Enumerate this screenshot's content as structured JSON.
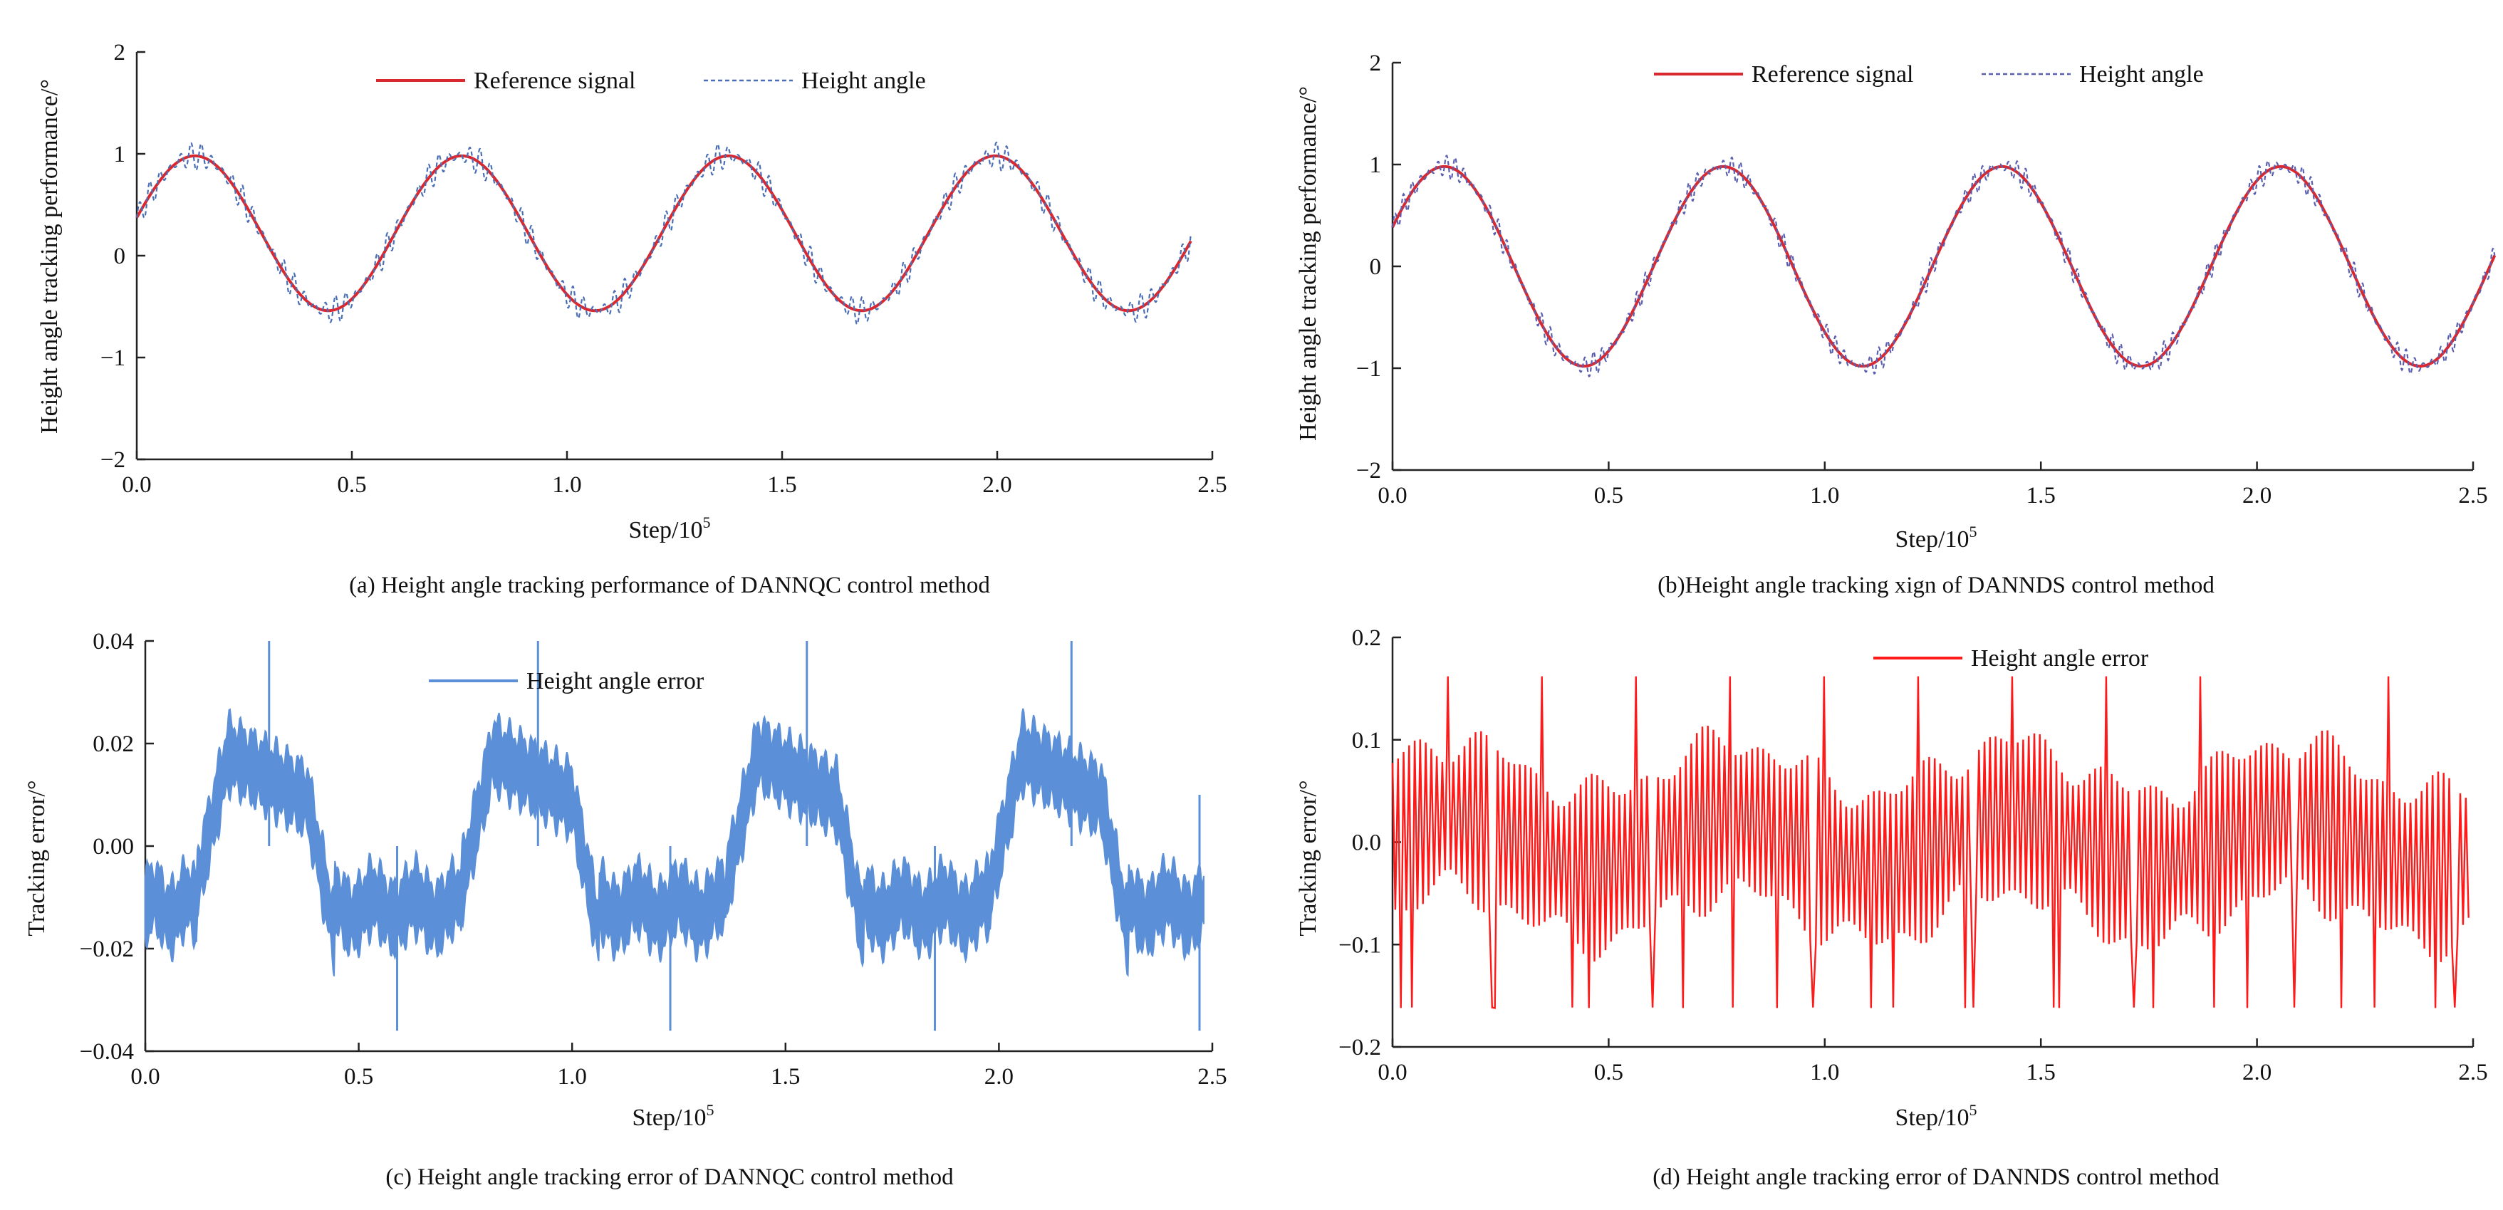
{
  "chart_data": [
    {
      "id": "a",
      "type": "line",
      "caption": "(a) Height angle tracking performance of DANNQC control method",
      "xlabel": "Step/10",
      "xlabel_sup": "5",
      "ylabel": "Height angle tracking performance/°",
      "xlim": [
        0,
        2.5
      ],
      "ylim": [
        -2,
        2
      ],
      "xticks": [
        "0.0",
        "0.5",
        "1.0",
        "1.5",
        "2.0",
        "2.5"
      ],
      "yticks": [
        "2",
        "1",
        "0",
        "−1",
        "−2"
      ],
      "x_end": 2.45,
      "series": [
        {
          "name": "Reference signal",
          "color": "#d9282f",
          "style": "solid",
          "signal": {
            "kind": "sine",
            "offset": 0.22,
            "amplitude": 0.76,
            "period": 0.62,
            "phase_x": 0.135
          }
        },
        {
          "name": "Height angle",
          "color": "#4a6fb5",
          "style": "dashed",
          "signal": {
            "kind": "sine_ripple",
            "offset": 0.22,
            "amplitude": 0.76,
            "period": 0.62,
            "phase_x": 0.135,
            "ripple": 0.14,
            "ripple_period": 0.024
          }
        }
      ],
      "legend": [
        "Reference signal",
        "Height angle"
      ]
    },
    {
      "id": "b",
      "type": "line",
      "caption": "(b)Height angle tracking xign of DANNDS control method",
      "xlabel": "Step/10",
      "xlabel_sup": "5",
      "ylabel": "Height angle tracking performance/°",
      "xlim": [
        0,
        2.5
      ],
      "ylim": [
        -2,
        2
      ],
      "xticks": [
        "0.0",
        "0.5",
        "1.0",
        "1.5",
        "2.0",
        "2.5"
      ],
      "yticks": [
        "2",
        "1",
        "0",
        "−1",
        "−2"
      ],
      "x_end": 2.55,
      "series": [
        {
          "name": "Reference signal",
          "color": "#d9282f",
          "style": "solid",
          "signal": {
            "kind": "sine",
            "offset": 0.0,
            "amplitude": 0.98,
            "period": 0.645,
            "phase_x": 0.12
          }
        },
        {
          "name": "Height angle",
          "color": "#5b5fb0",
          "style": "dashed",
          "signal": {
            "kind": "sine_ripple",
            "offset": 0.0,
            "amplitude": 0.98,
            "period": 0.645,
            "phase_x": 0.12,
            "ripple": 0.12,
            "ripple_period": 0.02
          }
        }
      ],
      "legend": [
        "Reference signal",
        "Height angle"
      ]
    },
    {
      "id": "c",
      "type": "line",
      "caption": "(c) Height angle tracking error of DANNQC control method",
      "xlabel": "Step/10",
      "xlabel_sup": "5",
      "ylabel": "Tracking error/°",
      "xlim": [
        0,
        2.5
      ],
      "ylim": [
        -0.04,
        0.04
      ],
      "xticks": [
        "0.0",
        "0.5",
        "1.0",
        "1.5",
        "2.0",
        "2.5"
      ],
      "yticks": [
        "0.04",
        "0.02",
        "0.00",
        "−0.02",
        "−0.04"
      ],
      "x_end": 2.48,
      "series": [
        {
          "name": "Height angle error",
          "color": "#5b8fd8",
          "style": "solid",
          "signal": {
            "kind": "band",
            "period": 0.62,
            "high": 0.014,
            "low": -0.012,
            "width": 0.012,
            "start_x": 0.12
          },
          "spikes": [
            {
              "x": 0.29,
              "top": 0.04,
              "bottom": 0.0
            },
            {
              "x": 0.59,
              "top": 0.0,
              "bottom": -0.036
            },
            {
              "x": 0.92,
              "top": 0.04,
              "bottom": 0.0
            },
            {
              "x": 1.23,
              "top": 0.0,
              "bottom": -0.036
            },
            {
              "x": 1.55,
              "top": 0.04,
              "bottom": 0.0
            },
            {
              "x": 1.85,
              "top": 0.0,
              "bottom": -0.036
            },
            {
              "x": 2.17,
              "top": 0.04,
              "bottom": 0.0
            },
            {
              "x": 2.47,
              "top": 0.01,
              "bottom": -0.036
            }
          ]
        }
      ],
      "legend": [
        "Height angle error"
      ]
    },
    {
      "id": "d",
      "type": "line",
      "caption": "(d) Height angle tracking error of DANNDS control method",
      "xlabel": "Step/10",
      "xlabel_sup": "5",
      "ylabel": "Tracking error/°",
      "xlim": [
        0,
        2.5
      ],
      "ylim": [
        -0.2,
        0.2
      ],
      "xticks": [
        "0.0",
        "0.5",
        "1.0",
        "1.5",
        "2.0",
        "2.5"
      ],
      "yticks": [
        "0.2",
        "0.1",
        "0.0",
        "−0.1",
        "−0.2"
      ],
      "x_end": 2.49,
      "series": [
        {
          "name": "Height angle error",
          "color": "#ff1a1a",
          "style": "solid",
          "signal": {
            "kind": "oscillation",
            "period": 0.645,
            "osc_period": 0.0128,
            "amplitude": 0.085,
            "extreme_max": 0.18,
            "extreme_min": -0.17
          }
        }
      ],
      "legend": [
        "Height angle error"
      ]
    }
  ]
}
